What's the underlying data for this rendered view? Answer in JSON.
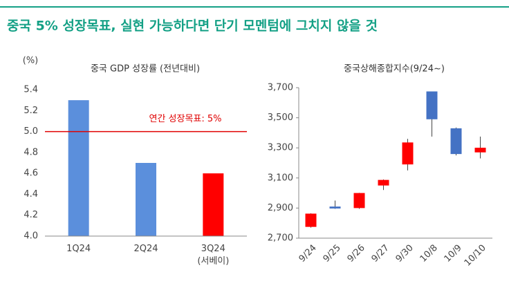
{
  "title": "중국 5% 성장목표, 실현 가능하다면 단기 모멘텀에 그치지 않을 것",
  "chart_data": [
    {
      "type": "bar",
      "title": "중국 GDP 성장률 (전년대비)",
      "y_label": "(%)",
      "categories": [
        "1Q24",
        "2Q24",
        "3Q24 (서베이)"
      ],
      "values": [
        5.3,
        4.7,
        4.6
      ],
      "colors": [
        "#5b8fdc",
        "#5b8fdc",
        "#ff0000"
      ],
      "ylim": [
        4.0,
        5.4
      ],
      "yticks": [
        {
          "value": 4,
          "label": "4.0"
        },
        4.2,
        4.4,
        4.6,
        4.8,
        {
          "value": 5,
          "label": "5.0"
        },
        5.2,
        5.4
      ],
      "reference_line": {
        "value": 5,
        "label": "연간 성장목표: 5%",
        "color": "#e00000"
      }
    },
    {
      "type": "candlestick",
      "title": "중국상해종합지수(9/24~)",
      "categories": [
        "9/24",
        "9/25",
        "9/26",
        "9/27",
        "9/30",
        "10/8",
        "10/9",
        "10/10"
      ],
      "open": [
        2775,
        2910,
        2900,
        3050,
        3190,
        3675,
        3430,
        3270
      ],
      "high": [
        2865,
        2950,
        3001,
        3090,
        3360,
        3675,
        3435,
        3375
      ],
      "low": [
        2770,
        2895,
        2895,
        3020,
        3150,
        3375,
        3250,
        3230
      ],
      "close": [
        2863,
        2897,
        3000,
        3087,
        3336,
        3490,
        3259,
        3301
      ],
      "up_color": "#ff0000",
      "down_color": "#4472c4",
      "ylim": [
        2700,
        3700
      ],
      "yticks": [
        {
          "value": 2700,
          "label": "2,700"
        },
        {
          "value": 2900,
          "label": "2,900"
        },
        {
          "value": 3100,
          "label": "3,100"
        },
        {
          "value": 3300,
          "label": "3,300"
        },
        {
          "value": 3500,
          "label": "3,500"
        },
        {
          "value": 3700,
          "label": "3,700"
        }
      ]
    }
  ]
}
